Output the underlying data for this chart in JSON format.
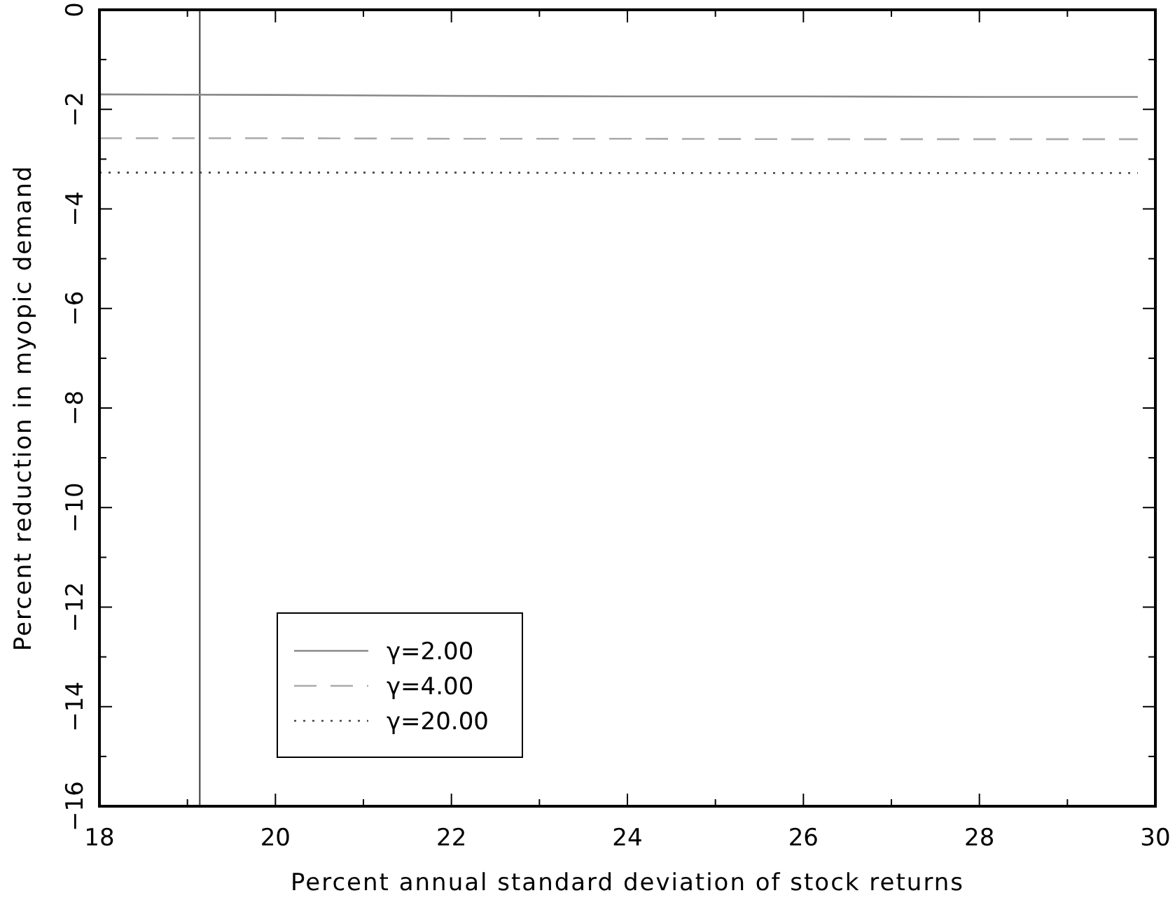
{
  "chart_data": {
    "type": "line",
    "xlabel": "Percent annual standard deviation of stock returns",
    "ylabel": "Percent reduction in myopic demand",
    "x": [
      18,
      20,
      22,
      24,
      26,
      28,
      29.8
    ],
    "series": [
      {
        "name": "γ=2.00",
        "color": "#888888",
        "line_style": "solid",
        "values": [
          -1.7,
          -1.71,
          -1.73,
          -1.74,
          -1.74,
          -1.75,
          -1.75
        ]
      },
      {
        "name": "γ=4.00",
        "color": "#aaaaaa",
        "line_style": "dashed",
        "values": [
          -2.58,
          -2.58,
          -2.59,
          -2.59,
          -2.6,
          -2.6,
          -2.6
        ]
      },
      {
        "name": "γ=20.00",
        "color": "#444444",
        "line_style": "dotted",
        "values": [
          -3.27,
          -3.27,
          -3.27,
          -3.28,
          -3.28,
          -3.28,
          -3.28
        ]
      }
    ],
    "xlim": [
      18,
      30
    ],
    "ylim": [
      -16,
      0
    ],
    "xticks": [
      18,
      {
        "value": 19,
        "label": null
      },
      20,
      {
        "value": 21,
        "label": null
      },
      22,
      {
        "value": 23,
        "label": null
      },
      24,
      {
        "value": 25,
        "label": null
      },
      26,
      {
        "value": 27,
        "label": null
      },
      28,
      {
        "value": 29,
        "label": null
      },
      30
    ],
    "yticks": [
      -16,
      {
        "value": -15,
        "label": null
      },
      -14,
      {
        "value": -13,
        "label": null
      },
      -12,
      {
        "value": -11,
        "label": null
      },
      -10,
      {
        "value": -9,
        "label": null
      },
      -8,
      {
        "value": -7,
        "label": null
      },
      -6,
      {
        "value": -5,
        "label": null
      },
      -4,
      {
        "value": -3,
        "label": null
      },
      -2,
      {
        "value": -1,
        "label": null
      },
      0
    ],
    "ref_lines": [
      {
        "axis": "x",
        "value": 19.14,
        "color": "#555555"
      }
    ],
    "grid": false,
    "legend": "bottom left"
  }
}
